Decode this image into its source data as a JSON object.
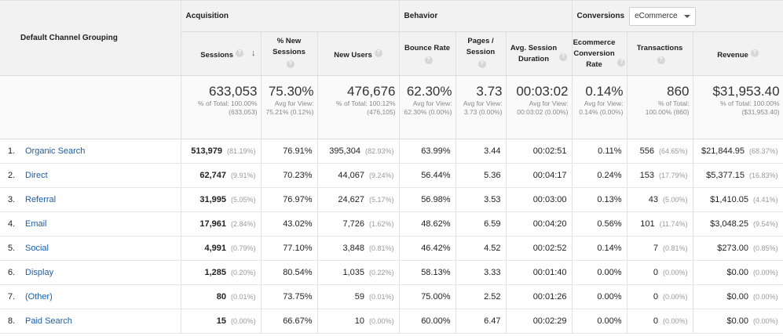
{
  "groups": {
    "dimension": "Default Channel Grouping",
    "acquisition": "Acquisition",
    "behavior": "Behavior",
    "conversions": "Conversions",
    "conversions_select": "eCommerce"
  },
  "columns": {
    "sessions": "Sessions",
    "pct_new_sessions": [
      "% New",
      "Sessions"
    ],
    "new_users": "New Users",
    "bounce_rate": "Bounce Rate",
    "pages_session": [
      "Pages /",
      "Session"
    ],
    "avg_session_duration": [
      "Avg. Session",
      "Duration"
    ],
    "ecommerce_conv_rate": [
      "Ecommerce",
      "Conversion",
      "Rate"
    ],
    "transactions": "Transactions",
    "revenue": "Revenue"
  },
  "totals": {
    "sessions": {
      "value": "633,053",
      "sub": "% of Total: 100.00% (633,053)"
    },
    "pct_new_sessions": {
      "value": "75.30%",
      "sub": "Avg for View: 75.21% (0.12%)"
    },
    "new_users": {
      "value": "476,676",
      "sub": "% of Total: 100.12% (476,105)"
    },
    "bounce_rate": {
      "value": "62.30%",
      "sub": "Avg for View: 62.30% (0.00%)"
    },
    "pages_session": {
      "value": "3.73",
      "sub": "Avg for View: 3.73 (0.00%)"
    },
    "avg_session_duration": {
      "value": "00:03:02",
      "sub": "Avg for View: 00:03:02 (0.00%)"
    },
    "ecommerce_conv_rate": {
      "value": "0.14%",
      "sub": "Avg for View: 0.14% (0.00%)"
    },
    "transactions": {
      "value": "860",
      "sub": "% of Total: 100.00% (860)"
    },
    "revenue": {
      "value": "$31,953.40",
      "sub": "% of Total: 100.00% ($31,953.40)"
    }
  },
  "rows": [
    {
      "num": "1.",
      "channel": "Organic Search",
      "sessions": "513,979",
      "sessions_pct": "(81.19%)",
      "pct_new": "76.91%",
      "new_users": "395,304",
      "new_users_pct": "(82.93%)",
      "bounce": "63.99%",
      "pages": "3.44",
      "duration": "00:02:51",
      "conv": "0.11%",
      "trans": "556",
      "trans_pct": "(64.65%)",
      "revenue": "$21,844.95",
      "revenue_pct": "(68.37%)"
    },
    {
      "num": "2.",
      "channel": "Direct",
      "sessions": "62,747",
      "sessions_pct": "(9.91%)",
      "pct_new": "70.23%",
      "new_users": "44,067",
      "new_users_pct": "(9.24%)",
      "bounce": "56.44%",
      "pages": "5.36",
      "duration": "00:04:17",
      "conv": "0.24%",
      "trans": "153",
      "trans_pct": "(17.79%)",
      "revenue": "$5,377.15",
      "revenue_pct": "(16.83%)"
    },
    {
      "num": "3.",
      "channel": "Referral",
      "sessions": "31,995",
      "sessions_pct": "(5.05%)",
      "pct_new": "76.97%",
      "new_users": "24,627",
      "new_users_pct": "(5.17%)",
      "bounce": "56.98%",
      "pages": "3.53",
      "duration": "00:03:00",
      "conv": "0.13%",
      "trans": "43",
      "trans_pct": "(5.00%)",
      "revenue": "$1,410.05",
      "revenue_pct": "(4.41%)"
    },
    {
      "num": "4.",
      "channel": "Email",
      "sessions": "17,961",
      "sessions_pct": "(2.84%)",
      "pct_new": "43.02%",
      "new_users": "7,726",
      "new_users_pct": "(1.62%)",
      "bounce": "48.62%",
      "pages": "6.59",
      "duration": "00:04:20",
      "conv": "0.56%",
      "trans": "101",
      "trans_pct": "(11.74%)",
      "revenue": "$3,048.25",
      "revenue_pct": "(9.54%)"
    },
    {
      "num": "5.",
      "channel": "Social",
      "sessions": "4,991",
      "sessions_pct": "(0.79%)",
      "pct_new": "77.10%",
      "new_users": "3,848",
      "new_users_pct": "(0.81%)",
      "bounce": "46.42%",
      "pages": "4.52",
      "duration": "00:02:52",
      "conv": "0.14%",
      "trans": "7",
      "trans_pct": "(0.81%)",
      "revenue": "$273.00",
      "revenue_pct": "(0.85%)"
    },
    {
      "num": "6.",
      "channel": "Display",
      "sessions": "1,285",
      "sessions_pct": "(0.20%)",
      "pct_new": "80.54%",
      "new_users": "1,035",
      "new_users_pct": "(0.22%)",
      "bounce": "58.13%",
      "pages": "3.33",
      "duration": "00:01:40",
      "conv": "0.00%",
      "trans": "0",
      "trans_pct": "(0.00%)",
      "revenue": "$0.00",
      "revenue_pct": "(0.00%)"
    },
    {
      "num": "7.",
      "channel": "(Other)",
      "sessions": "80",
      "sessions_pct": "(0.01%)",
      "pct_new": "73.75%",
      "new_users": "59",
      "new_users_pct": "(0.01%)",
      "bounce": "75.00%",
      "pages": "2.52",
      "duration": "00:01:26",
      "conv": "0.00%",
      "trans": "0",
      "trans_pct": "(0.00%)",
      "revenue": "$0.00",
      "revenue_pct": "(0.00%)"
    },
    {
      "num": "8.",
      "channel": "Paid Search",
      "sessions": "15",
      "sessions_pct": "(0.00%)",
      "pct_new": "66.67%",
      "new_users": "10",
      "new_users_pct": "(0.00%)",
      "bounce": "60.00%",
      "pages": "6.47",
      "duration": "00:02:29",
      "conv": "0.00%",
      "trans": "0",
      "trans_pct": "(0.00%)",
      "revenue": "$0.00",
      "revenue_pct": "(0.00%)"
    }
  ]
}
